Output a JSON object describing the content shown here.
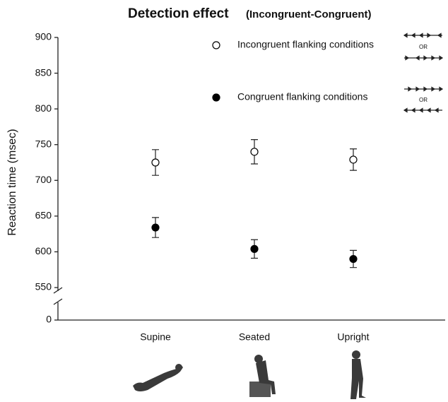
{
  "chart_data": {
    "type": "errorbar-scatter",
    "title": "Detection effect",
    "subtitle": "(Incongruent-Congruent)",
    "y_label": "Reaction time (msec)",
    "categories": [
      "Supine",
      "Seated",
      "Upright"
    ],
    "series": [
      {
        "name": "Incongruent flanking conditions",
        "marker": "open",
        "color": "#000000",
        "values": [
          725,
          740,
          729
        ],
        "errors": [
          18,
          17,
          15
        ]
      },
      {
        "name": "Congruent  flanking conditions",
        "marker": "filled",
        "color": "#000000",
        "values": [
          634,
          604,
          590
        ],
        "errors": [
          14,
          13,
          12
        ]
      }
    ],
    "legend_note": "OR",
    "ylim": [
      550,
      900
    ],
    "yticks": [
      0,
      550,
      600,
      650,
      700,
      750,
      800,
      850,
      900
    ],
    "axis_break": true
  }
}
